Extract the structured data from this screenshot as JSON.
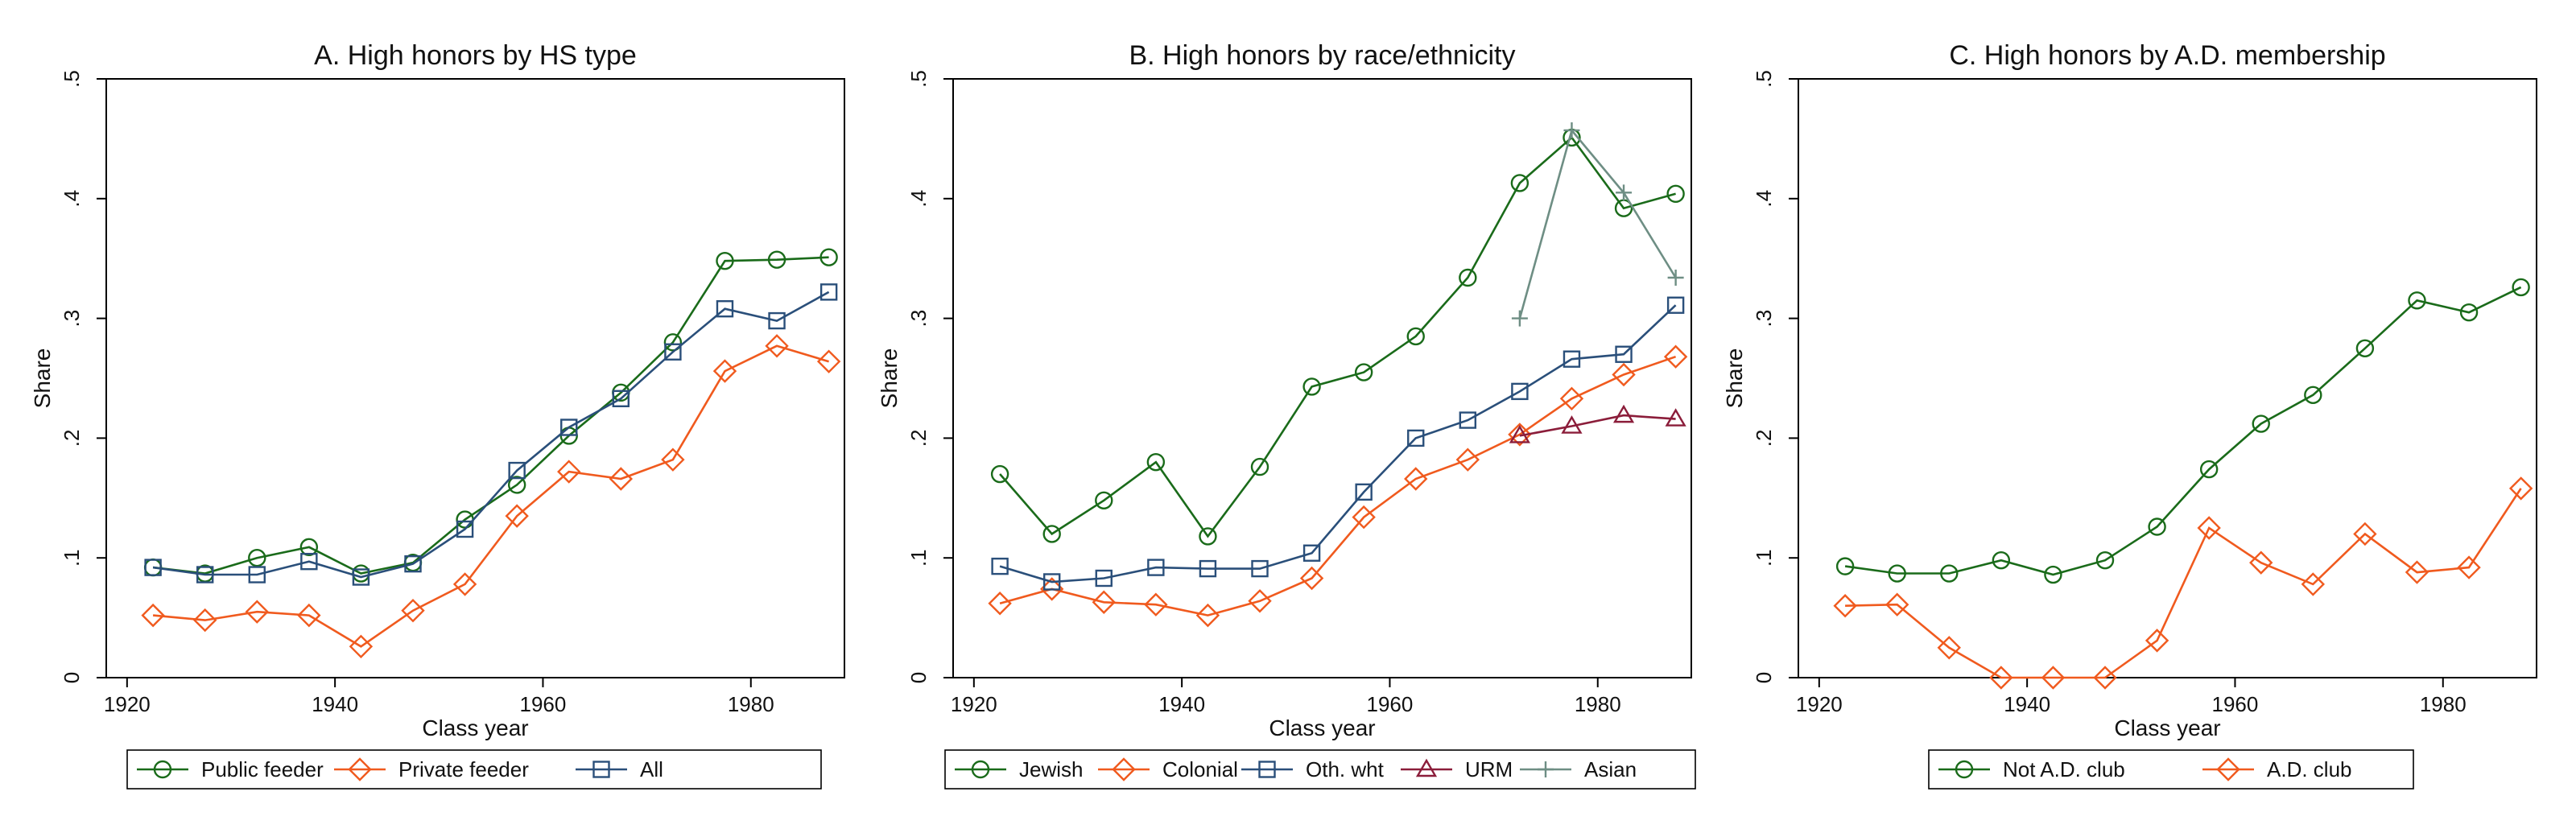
{
  "chart_data": [
    {
      "type": "line",
      "title": "A. High honors by HS type",
      "xlabel": "Class year",
      "ylabel": "Share",
      "xlim": [
        1918,
        1989
      ],
      "ylim": [
        0,
        0.5
      ],
      "xticks": [
        1920,
        1940,
        1960,
        1980
      ],
      "xtick_labels": [
        "1920",
        "1940",
        "1960",
        "1980"
      ],
      "yticks": [
        0,
        0.1,
        0.2,
        0.3,
        0.4,
        0.5
      ],
      "ytick_labels": [
        "0",
        ".1",
        ".2",
        ".3",
        ".4",
        ".5"
      ],
      "grid": false,
      "legend_position": "bottom",
      "series": [
        {
          "name": "Public feeder",
          "color": "#1a6b1a",
          "marker": "circle",
          "x": [
            1922.5,
            1927.5,
            1932.5,
            1937.5,
            1942.5,
            1947.5,
            1952.5,
            1957.5,
            1962.5,
            1967.5,
            1972.5,
            1977.5,
            1982.5,
            1987.5
          ],
          "y": [
            0.092,
            0.087,
            0.1,
            0.109,
            0.087,
            0.096,
            0.132,
            0.161,
            0.202,
            0.238,
            0.28,
            0.348,
            0.349,
            0.351
          ]
        },
        {
          "name": "Private feeder",
          "color": "#f05a1e",
          "marker": "diamond",
          "x": [
            1922.5,
            1927.5,
            1932.5,
            1937.5,
            1942.5,
            1947.5,
            1952.5,
            1957.5,
            1962.5,
            1967.5,
            1972.5,
            1977.5,
            1982.5,
            1987.5
          ],
          "y": [
            0.052,
            0.048,
            0.055,
            0.052,
            0.026,
            0.056,
            0.078,
            0.135,
            0.172,
            0.166,
            0.182,
            0.256,
            0.277,
            0.264
          ]
        },
        {
          "name": "All",
          "color": "#2a4f7a",
          "marker": "square",
          "x": [
            1922.5,
            1927.5,
            1932.5,
            1937.5,
            1942.5,
            1947.5,
            1952.5,
            1957.5,
            1962.5,
            1967.5,
            1972.5,
            1977.5,
            1982.5,
            1987.5
          ],
          "y": [
            0.092,
            0.086,
            0.086,
            0.097,
            0.084,
            0.095,
            0.124,
            0.173,
            0.209,
            0.233,
            0.272,
            0.308,
            0.298,
            0.322
          ]
        }
      ]
    },
    {
      "type": "line",
      "title": "B. High honors by race/ethnicity",
      "xlabel": "Class year",
      "ylabel": "Share",
      "xlim": [
        1918,
        1989
      ],
      "ylim": [
        0,
        0.5
      ],
      "xticks": [
        1920,
        1940,
        1960,
        1980
      ],
      "xtick_labels": [
        "1920",
        "1940",
        "1960",
        "1980"
      ],
      "yticks": [
        0,
        0.1,
        0.2,
        0.3,
        0.4,
        0.5
      ],
      "ytick_labels": [
        "0",
        ".1",
        ".2",
        ".3",
        ".4",
        ".5"
      ],
      "grid": false,
      "legend_position": "bottom",
      "series": [
        {
          "name": "Jewish",
          "color": "#1a6b1a",
          "marker": "circle",
          "x": [
            1922.5,
            1927.5,
            1932.5,
            1937.5,
            1942.5,
            1947.5,
            1952.5,
            1957.5,
            1962.5,
            1967.5,
            1972.5,
            1977.5,
            1982.5,
            1987.5
          ],
          "y": [
            0.17,
            0.12,
            0.148,
            0.18,
            0.118,
            0.176,
            0.243,
            0.255,
            0.285,
            0.334,
            0.413,
            0.451,
            0.392,
            0.404
          ]
        },
        {
          "name": "Colonial",
          "color": "#f05a1e",
          "marker": "diamond",
          "x": [
            1922.5,
            1927.5,
            1932.5,
            1937.5,
            1942.5,
            1947.5,
            1952.5,
            1957.5,
            1962.5,
            1967.5,
            1972.5,
            1977.5,
            1982.5,
            1987.5
          ],
          "y": [
            0.062,
            0.074,
            0.063,
            0.061,
            0.052,
            0.064,
            0.083,
            0.134,
            0.166,
            0.182,
            0.203,
            0.233,
            0.253,
            0.268
          ]
        },
        {
          "name": "Oth. wht",
          "color": "#2a4f7a",
          "marker": "square",
          "x": [
            1922.5,
            1927.5,
            1932.5,
            1937.5,
            1942.5,
            1947.5,
            1952.5,
            1957.5,
            1962.5,
            1967.5,
            1972.5,
            1977.5,
            1982.5,
            1987.5
          ],
          "y": [
            0.093,
            0.08,
            0.083,
            0.092,
            0.091,
            0.091,
            0.104,
            0.155,
            0.2,
            0.215,
            0.239,
            0.266,
            0.27,
            0.311
          ]
        },
        {
          "name": "URM",
          "color": "#8b1d3a",
          "marker": "triangle",
          "x": [
            1972.5,
            1977.5,
            1982.5,
            1987.5
          ],
          "y": [
            0.202,
            0.21,
            0.219,
            0.216
          ]
        },
        {
          "name": "Asian",
          "color": "#6e8e84",
          "marker": "plus",
          "x": [
            1972.5,
            1977.5,
            1982.5,
            1987.5
          ],
          "y": [
            0.3,
            0.457,
            0.405,
            0.334
          ]
        }
      ]
    },
    {
      "type": "line",
      "title": "C. High honors by A.D. membership",
      "xlabel": "Class year",
      "ylabel": "Share",
      "xlim": [
        1918,
        1989
      ],
      "ylim": [
        0,
        0.5
      ],
      "xticks": [
        1920,
        1940,
        1960,
        1980
      ],
      "xtick_labels": [
        "1920",
        "1940",
        "1960",
        "1980"
      ],
      "yticks": [
        0,
        0.1,
        0.2,
        0.3,
        0.4,
        0.5
      ],
      "ytick_labels": [
        "0",
        ".1",
        ".2",
        ".3",
        ".4",
        ".5"
      ],
      "grid": false,
      "legend_position": "bottom",
      "series": [
        {
          "name": "Not A.D. club",
          "color": "#1a6b1a",
          "marker": "circle",
          "x": [
            1922.5,
            1927.5,
            1932.5,
            1937.5,
            1942.5,
            1947.5,
            1952.5,
            1957.5,
            1962.5,
            1967.5,
            1972.5,
            1977.5,
            1982.5,
            1987.5
          ],
          "y": [
            0.093,
            0.087,
            0.087,
            0.098,
            0.086,
            0.098,
            0.126,
            0.174,
            0.212,
            0.236,
            0.275,
            0.315,
            0.305,
            0.326
          ]
        },
        {
          "name": "A.D. club",
          "color": "#f05a1e",
          "marker": "diamond",
          "x": [
            1922.5,
            1927.5,
            1932.5,
            1937.5,
            1942.5,
            1947.5,
            1952.5,
            1957.5,
            1962.5,
            1967.5,
            1972.5,
            1977.5,
            1982.5,
            1987.5
          ],
          "y": [
            0.06,
            0.061,
            0.025,
            0.0,
            0.0,
            0.0,
            0.031,
            0.125,
            0.096,
            0.078,
            0.12,
            0.088,
            0.092,
            0.158
          ]
        }
      ]
    }
  ]
}
